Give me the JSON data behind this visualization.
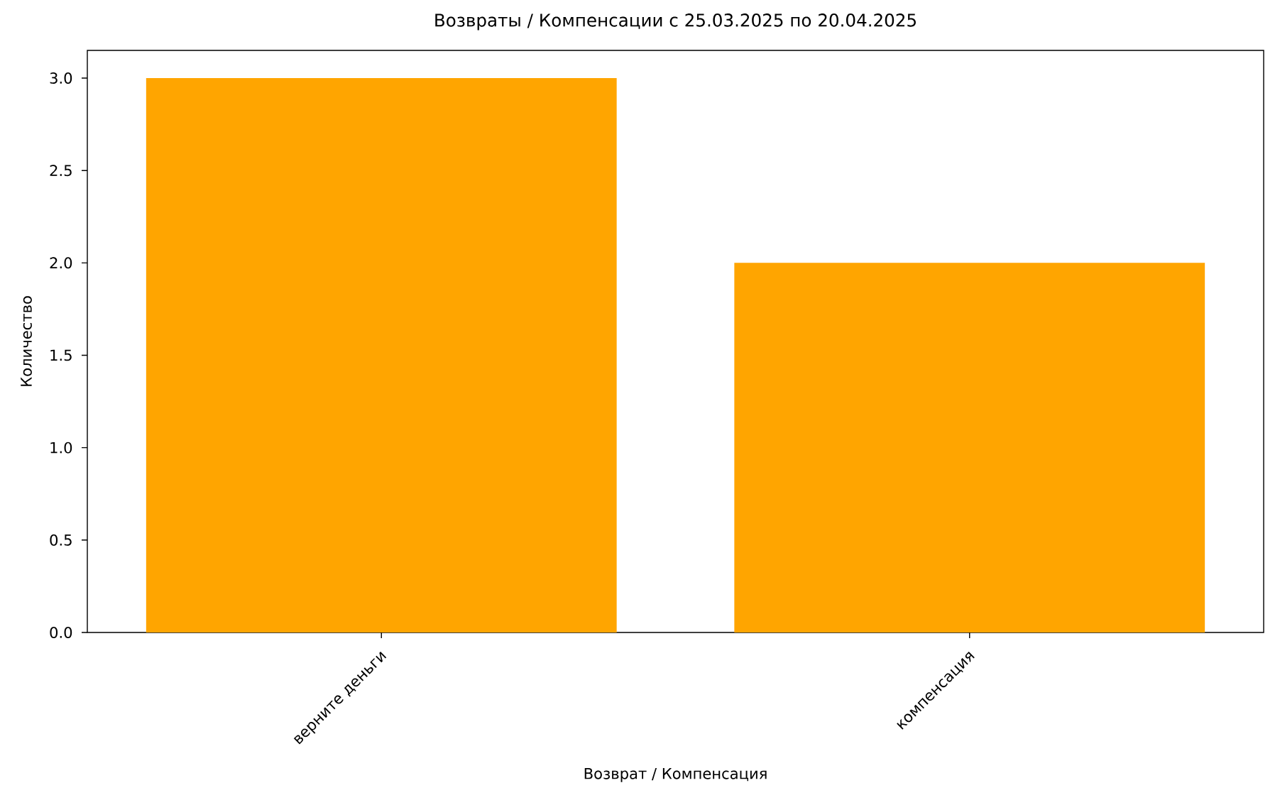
{
  "chart_data": {
    "type": "bar",
    "title": "Возвраты / Компенсации с 25.03.2025 по 20.04.2025",
    "xlabel": "Возврат / Компенсация",
    "ylabel": "Количество",
    "categories": [
      "верните деньги",
      "компенсация"
    ],
    "values": [
      3,
      2
    ],
    "color": "#ffa500",
    "ylim": [
      0,
      3.15
    ],
    "yticks": [
      {
        "value": 0,
        "label": "0.0"
      },
      {
        "value": 0.5,
        "label": "0.5"
      },
      {
        "value": 1,
        "label": "1.0"
      },
      {
        "value": 1.5,
        "label": "1.5"
      },
      {
        "value": 2,
        "label": "2.0"
      },
      {
        "value": 2.5,
        "label": "2.5"
      },
      {
        "value": 3,
        "label": "3.0"
      }
    ],
    "grid": false
  }
}
